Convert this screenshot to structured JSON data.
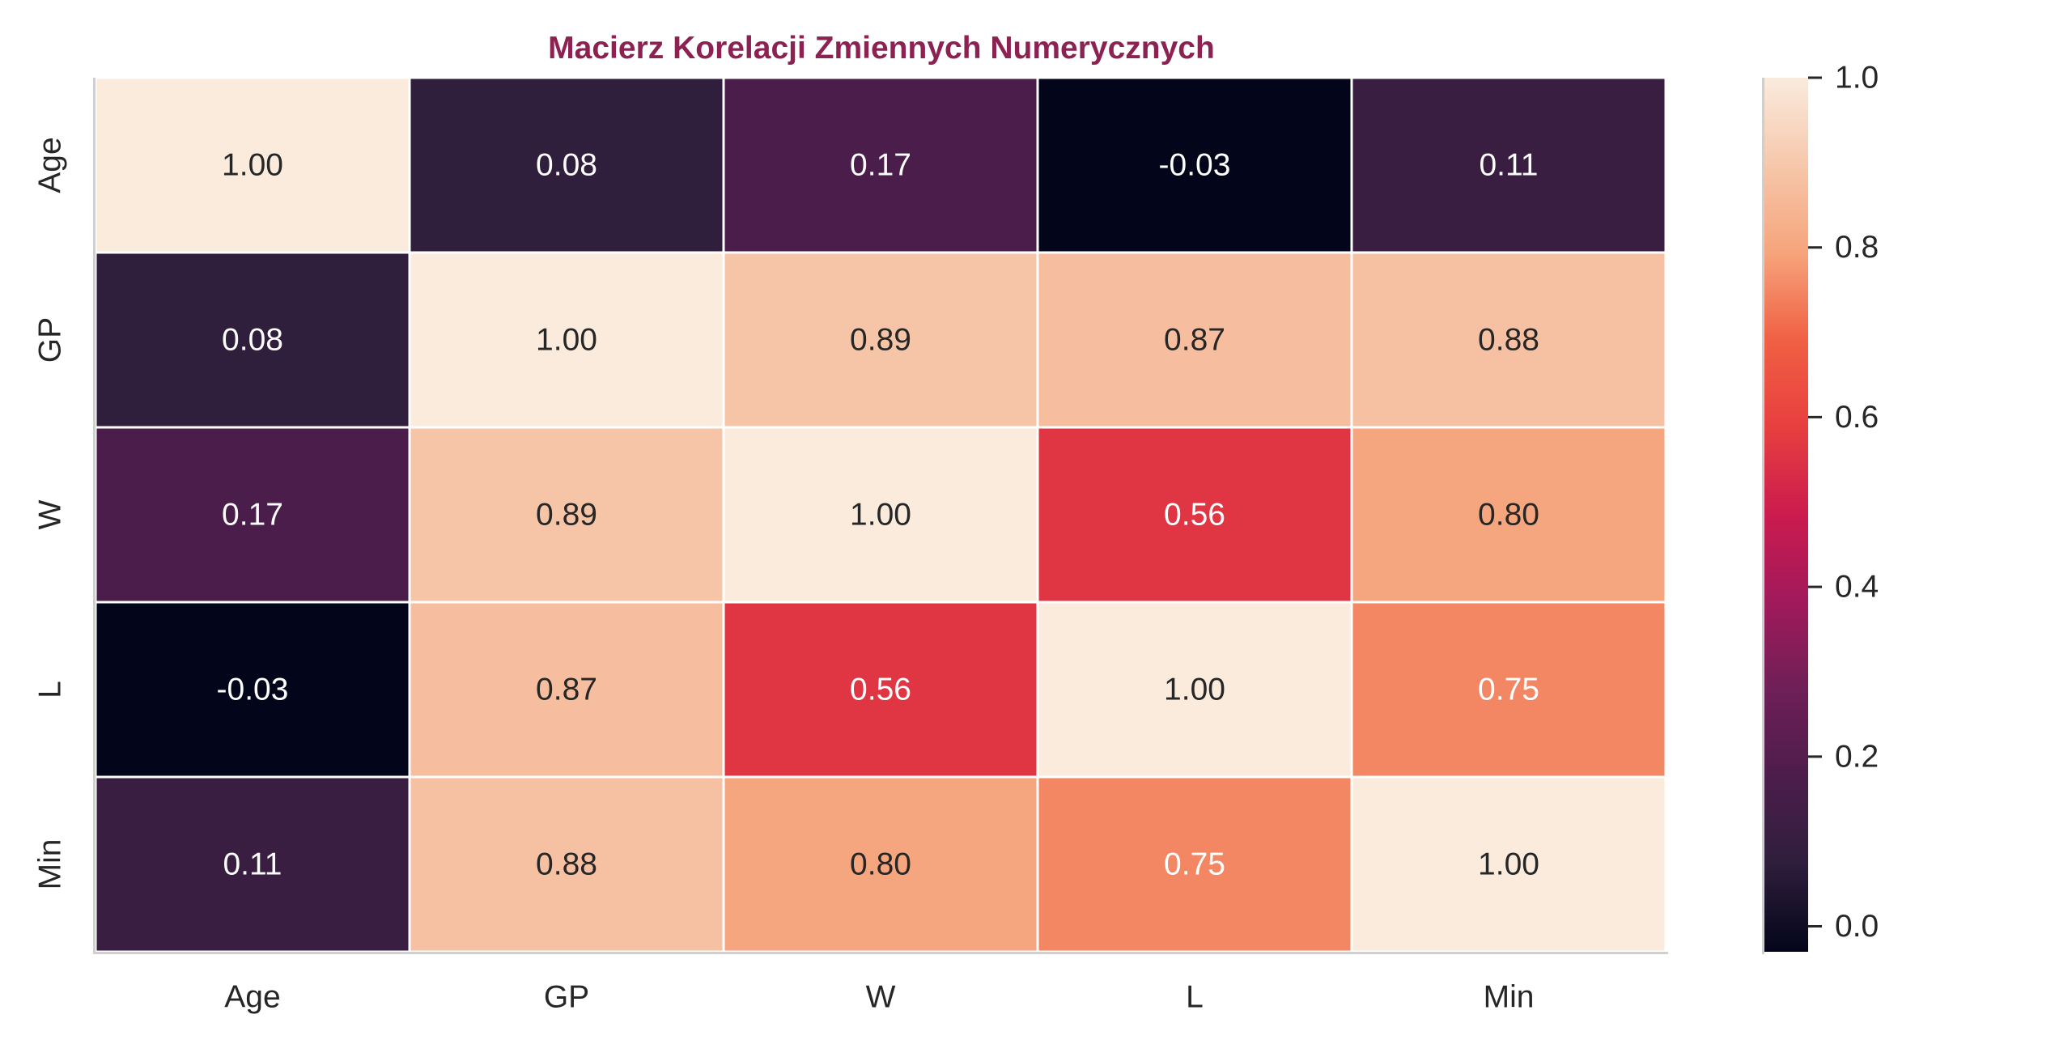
{
  "chart_data": {
    "type": "heatmap",
    "title": "Macierz Korelacji Zmiennych Numerycznych",
    "xlabel": "",
    "ylabel": "",
    "x_labels": [
      "Age",
      "GP",
      "W",
      "L",
      "Min"
    ],
    "y_labels": [
      "Age",
      "GP",
      "W",
      "L",
      "Min"
    ],
    "values": [
      [
        1.0,
        0.08,
        0.17,
        -0.03,
        0.11
      ],
      [
        0.08,
        1.0,
        0.89,
        0.87,
        0.88
      ],
      [
        0.17,
        0.89,
        1.0,
        0.56,
        0.8
      ],
      [
        -0.03,
        0.87,
        0.56,
        1.0,
        0.75
      ],
      [
        0.11,
        0.88,
        0.8,
        0.75,
        1.0
      ]
    ],
    "value_format": "0.00",
    "colormap": "rocket",
    "colormap_stops": [
      "#03051a",
      "#2e1e3c",
      "#4c1d4b",
      "#6e1f57",
      "#a11a5b",
      "#cb1b4f",
      "#e83f3f",
      "#f06043",
      "#f6a47c",
      "#f6c7ab",
      "#faebdd"
    ],
    "vmin": -0.03,
    "vmax": 1.0,
    "colorbar": {
      "ticks": [
        0.0,
        0.2,
        0.4,
        0.6,
        0.8,
        1.0
      ],
      "tick_labels": [
        "0.0",
        "0.2",
        "0.4",
        "0.6",
        "0.8",
        "1.0"
      ]
    },
    "grid": false,
    "legend": "colorbar-right"
  }
}
